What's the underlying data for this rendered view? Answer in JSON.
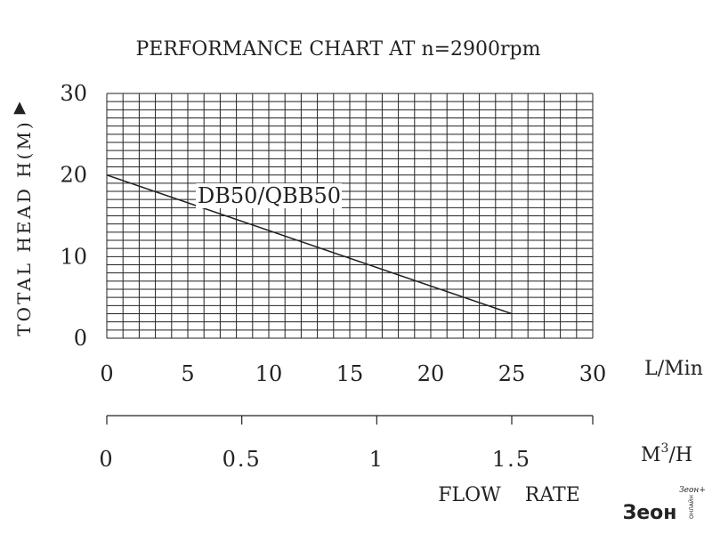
{
  "chart_data": {
    "type": "line",
    "title": "PERFORMANCE CHART AT n=2900rpm",
    "ylabel": "TOTAL HEAD H(M)",
    "ylabel_arrow": "▲",
    "x_unit": "L/Min",
    "x2_unit": "M",
    "x2_unit_sup": "3",
    "x2_unit_suffix": "/H",
    "x_axis_title": "FLOW RATE",
    "xlim": [
      0,
      30
    ],
    "ylim": [
      0,
      30
    ],
    "x_ticks": [
      "0",
      "5",
      "10",
      "15",
      "20",
      "25",
      "30"
    ],
    "y_ticks": [
      "30",
      "20",
      "10",
      "0"
    ],
    "x2_ticks": [
      "0",
      "0.5",
      "1",
      "1.5"
    ],
    "grid": true,
    "series": [
      {
        "name": "DB50/QBB50",
        "x": [
          0,
          25
        ],
        "y": [
          20,
          3
        ]
      }
    ]
  },
  "watermark": {
    "text": "Зеон",
    "small": "Зеон+",
    "side": "ОНЛАЙН"
  },
  "colors": {
    "ink": "#222222",
    "background": "#ffffff"
  }
}
